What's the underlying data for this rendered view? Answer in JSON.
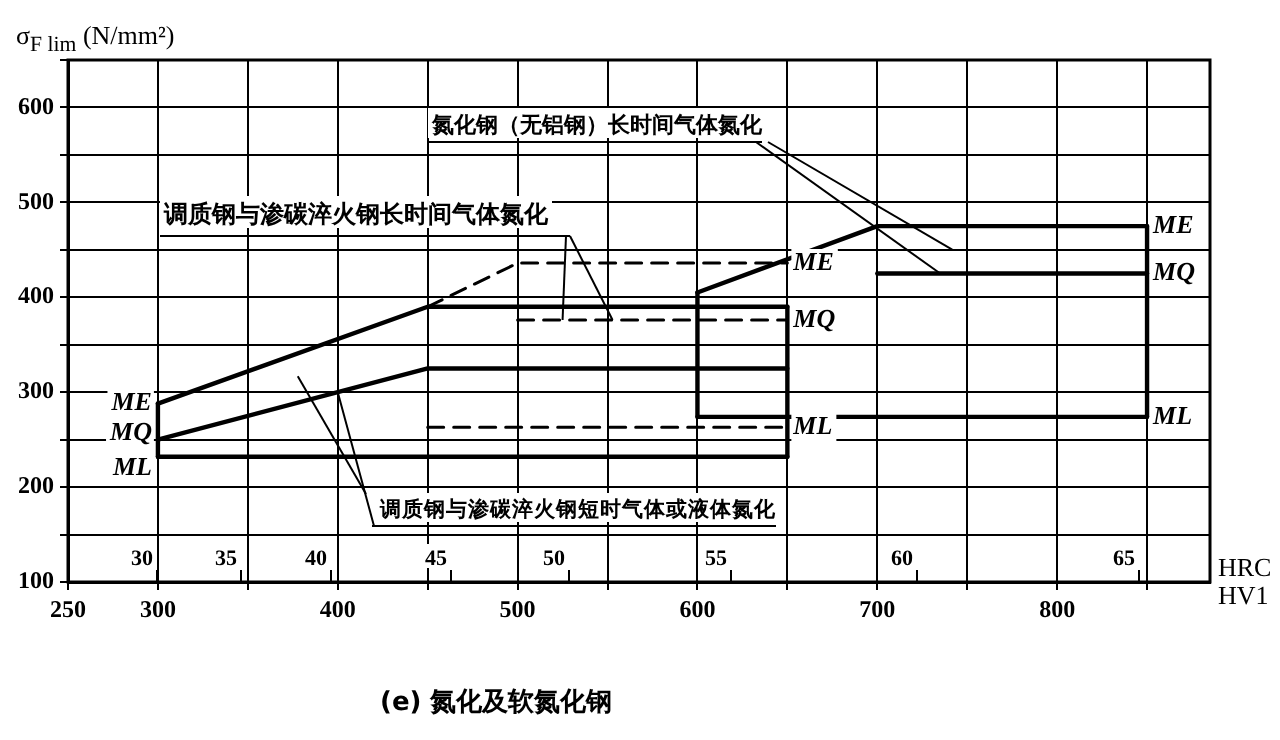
{
  "chart_data": {
    "type": "line",
    "title": "(e) 氮化及软氮化钢",
    "ylabel": "σ$_{F lim}$ (N/mm²)",
    "xlabel": "HV1",
    "xlim": [
      250,
      885
    ],
    "xticks": [
      250,
      300,
      {
        "value": 350,
        "label": null
      },
      400,
      {
        "value": 450,
        "label": null
      },
      500,
      {
        "value": 550,
        "label": null
      },
      600,
      {
        "value": 650,
        "label": null
      },
      700,
      {
        "value": 750,
        "label": null
      },
      800,
      {
        "value": 850,
        "label": null
      }
    ],
    "ylim": [
      100,
      650
    ],
    "yticks": [
      100,
      {
        "value": 150,
        "label": null
      },
      200,
      {
        "value": 250,
        "label": null
      },
      300,
      {
        "value": 350,
        "label": null
      },
      400,
      {
        "value": 450,
        "label": null
      },
      500,
      {
        "value": 550,
        "label": null
      },
      600,
      {
        "value": 650,
        "label": null
      }
    ],
    "grid": true,
    "legend": false,
    "marker": "none",
    "annotations": [
      {
        "text": "氮化钢（无铝钢）长时间气体氮化",
        "x": 735,
        "y": 425
      },
      {
        "text": "调质钢与渗碳淬火钢长时间气体氮化",
        "x": 525,
        "y": 376
      },
      {
        "text": "调质钢与渗碳淬火钢短时气体或液体氮化",
        "x": 400,
        "y": 300
      },
      "HRC",
      "30",
      "35",
      "40",
      "45",
      "50",
      "55",
      "60",
      "65"
    ],
    "series": [
      {
        "name": "ME",
        "color": "#000000",
        "x": [
          300,
          450,
          650
        ],
        "values": [
          288,
          390,
          390
        ]
      },
      {
        "name": "MQ",
        "color": "#000000",
        "x": [
          300,
          450,
          650
        ],
        "values": [
          250,
          325,
          325
        ]
      },
      {
        "name": "ML",
        "color": "#000000",
        "x": [
          300,
          650
        ],
        "values": [
          232,
          232
        ]
      },
      {
        "name": "ME",
        "color": "#000000",
        "x": [
          450,
          500,
          650
        ],
        "values": [
          390,
          436,
          436
        ],
        "line_style": "dashed"
      },
      {
        "name": "MQ",
        "color": "#000000",
        "x": [
          500,
          650
        ],
        "values": [
          376,
          376
        ],
        "line_style": "dashed"
      },
      {
        "name": "ML",
        "color": "#000000",
        "x": [
          450,
          650
        ],
        "values": [
          263,
          263
        ],
        "line_style": "dashed"
      },
      {
        "name": "ME",
        "color": "#000000",
        "x": [
          600,
          700,
          850
        ],
        "values": [
          405,
          475,
          475
        ]
      },
      {
        "name": "MQ",
        "color": "#000000",
        "x": [
          700,
          850
        ],
        "values": [
          425,
          425
        ]
      },
      {
        "name": "ML",
        "color": "#000000",
        "x": [
          600,
          850
        ],
        "values": [
          274,
          274
        ]
      },
      {
        "color": "#000000",
        "x": [
          300,
          300
        ],
        "values": [
          232,
          288
        ]
      },
      {
        "color": "#000000",
        "x": [
          650,
          650
        ],
        "values": [
          232,
          390
        ]
      },
      {
        "color": "#000000",
        "x": [
          600,
          600
        ],
        "values": [
          274,
          405
        ]
      },
      {
        "color": "#000000",
        "x": [
          850,
          850
        ],
        "values": [
          274,
          475
        ]
      }
    ]
  }
}
